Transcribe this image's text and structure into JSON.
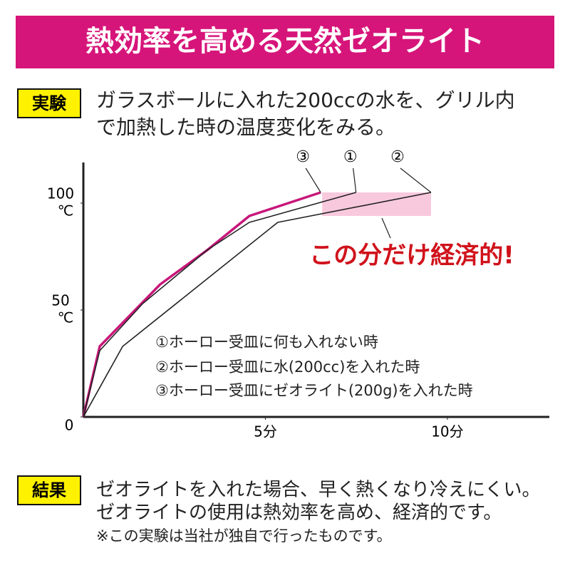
{
  "header": {
    "title": "熱効率を高める天然ゼオライト"
  },
  "experiment": {
    "label": "実験",
    "lines": [
      "ガラスボールに入れた200ccの水を、グリル内",
      "で加熱した時の温度変化をみる。"
    ]
  },
  "chart_data": {
    "type": "line",
    "xlim": [
      0,
      12.8
    ],
    "ylim": [
      0,
      119
    ],
    "xticks": [
      {
        "value": 5,
        "label": "5分"
      },
      {
        "value": 10,
        "label": "10分"
      }
    ],
    "yticks": [
      0,
      50,
      100
    ],
    "y_unit": "℃",
    "series": [
      {
        "name": "③",
        "description": "③ホーロー受皿にゼオライト(200g)を入れた時",
        "color": "#c8177a",
        "x": [
          0,
          0.45,
          2.11,
          3.4,
          4.56,
          6.52
        ],
        "values": [
          0,
          33,
          62,
          78,
          94,
          105
        ]
      },
      {
        "name": "①",
        "description": "①ホーロー受皿に何も入れない時",
        "color": "#222222",
        "x": [
          0,
          0.45,
          1.63,
          3.4,
          4.56,
          7.49
        ],
        "values": [
          0,
          31,
          53,
          78,
          91,
          105
        ]
      },
      {
        "name": "②",
        "description": "②ホーロー受皿に水(200cc)を入れた時",
        "color": "#222222",
        "x": [
          0,
          1.08,
          5.34,
          9.55
        ],
        "values": [
          0,
          33,
          91,
          105
        ]
      }
    ],
    "highlight": {
      "x": [
        6.56,
        9.55
      ],
      "y": [
        94,
        105
      ],
      "color": "#f8c9dc"
    },
    "annotation": "この分だけ経済的!"
  },
  "result": {
    "label": "結果",
    "lines": [
      "ゼオライトを入れた場合、早く熱くなり冷えにくい。",
      "ゼオライトの使用は熱効率を高め、経済的です。"
    ],
    "note": "※この実験は当社が独自で行ったものです。"
  }
}
